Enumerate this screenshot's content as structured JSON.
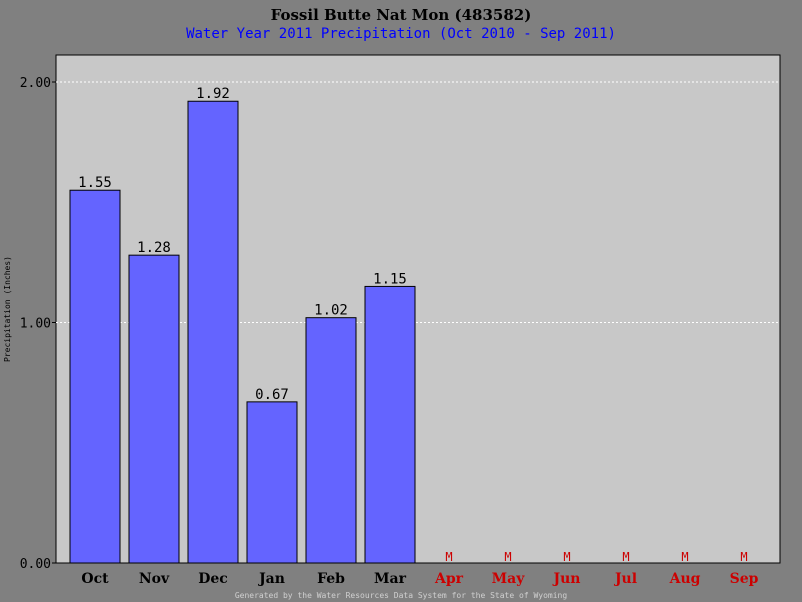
{
  "chart_data": {
    "type": "bar",
    "title": "Fossil Butte Nat Mon (483582)",
    "subtitle": "Water Year 2011 Precipitation (Oct 2010 - Sep 2011)",
    "ylabel": "Precipitation (Inches)",
    "xlabel": "",
    "categories": [
      "Oct",
      "Nov",
      "Dec",
      "Jan",
      "Feb",
      "Mar",
      "Apr",
      "May",
      "Jun",
      "Jul",
      "Aug",
      "Sep"
    ],
    "values": [
      1.55,
      1.28,
      1.92,
      0.67,
      1.02,
      1.15,
      null,
      null,
      null,
      null,
      null,
      null
    ],
    "value_labels": [
      "1.55",
      "1.28",
      "1.92",
      "0.67",
      "1.02",
      "1.15",
      "M",
      "M",
      "M",
      "M",
      "M",
      "M"
    ],
    "ylim": [
      0,
      2.0
    ],
    "yticks": [
      "0.00",
      "1.00",
      "2.00"
    ],
    "ytick_values": [
      0,
      1,
      2
    ],
    "grid": "horizontal dotted",
    "legend": "none",
    "footer": "Generated by the Water Resources Data System for the State of Wyoming"
  },
  "colors": {
    "outer_background": "#808080",
    "plot_background": "#c8c8c8",
    "bar_fill": "#6464ff",
    "subtitle": "#0000ff",
    "missing": "#cc0000",
    "text": "#000000"
  }
}
